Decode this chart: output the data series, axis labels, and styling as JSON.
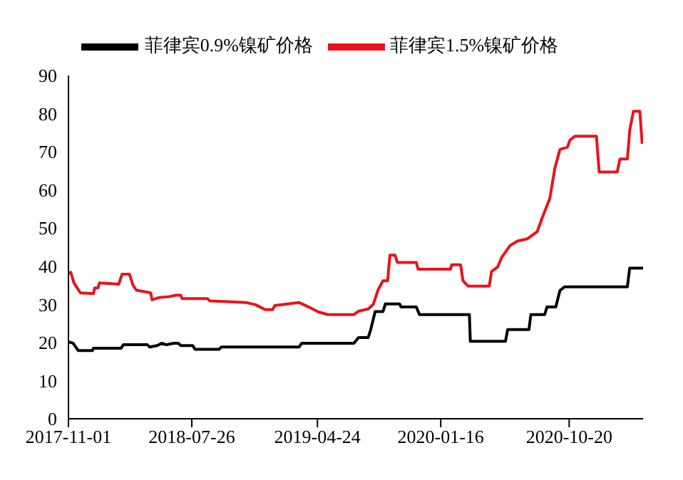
{
  "chart_data": {
    "type": "line",
    "legend": "top",
    "xlim": [
      "2017-11-01",
      "2021-03-29"
    ],
    "xticks": [
      "2017-11-01",
      "2018-07-26",
      "2019-04-24",
      "2020-01-16",
      "2020-10-20"
    ],
    "ylim": [
      0,
      90
    ],
    "yticks": [
      0,
      10,
      20,
      30,
      40,
      50,
      60,
      70,
      80,
      90
    ],
    "series": [
      {
        "name": "菲律宾1.5%镍矿价格",
        "color": "#e8141b",
        "x": [
          "2017-11-01",
          "2017-11-06",
          "2017-11-13",
          "2017-11-27",
          "2017-12-25",
          "2017-12-28",
          "2018-01-04",
          "2018-01-07",
          "2018-02-18",
          "2018-02-25",
          "2018-03-13",
          "2018-03-21",
          "2018-03-28",
          "2018-04-16",
          "2018-04-28",
          "2018-05-01",
          "2018-05-17",
          "2018-06-06",
          "2018-06-22",
          "2018-07-02",
          "2018-07-05",
          "2018-08-29",
          "2018-09-03",
          "2018-11-20",
          "2018-12-11",
          "2019-01-01",
          "2019-01-17",
          "2019-01-22",
          "2019-03-15",
          "2019-04-05",
          "2019-04-26",
          "2019-05-17",
          "2019-07-12",
          "2019-07-22",
          "2019-08-12",
          "2019-08-23",
          "2019-09-02",
          "2019-09-13",
          "2019-09-23",
          "2019-09-28",
          "2019-10-09",
          "2019-10-14",
          "2019-11-24",
          "2019-11-28",
          "2020-02-06",
          "2020-02-09",
          "2020-02-28",
          "2020-03-04",
          "2020-03-15",
          "2020-04-30",
          "2020-05-05",
          "2020-05-18",
          "2020-05-27",
          "2020-06-14",
          "2020-06-30",
          "2020-07-22",
          "2020-08-12",
          "2020-08-23",
          "2020-09-08",
          "2020-09-19",
          "2020-09-30",
          "2020-10-16",
          "2020-10-22",
          "2020-11-02",
          "2020-12-18",
          "2020-12-24",
          "2021-02-01",
          "2021-02-07",
          "2021-02-23",
          "2021-02-28",
          "2021-03-08",
          "2021-03-22",
          "2021-03-27"
        ],
        "values": [
          38.1,
          38.4,
          35.6,
          33,
          32.8,
          34.3,
          34.3,
          35.6,
          35.3,
          37.9,
          37.9,
          35,
          33.7,
          33.3,
          33,
          31.2,
          31.8,
          32,
          32.4,
          32.4,
          31.5,
          31.5,
          30.9,
          30.5,
          29.9,
          28.6,
          28.6,
          29.7,
          30.5,
          29.3,
          28,
          27.3,
          27.3,
          28.2,
          28.8,
          30,
          33.7,
          36.2,
          36.2,
          42.9,
          42.9,
          41,
          41,
          39.2,
          39.2,
          40.4,
          40.4,
          36.2,
          34.8,
          34.8,
          38.6,
          39.8,
          42.3,
          45.4,
          46.6,
          47.2,
          49.1,
          52.8,
          57.7,
          65.7,
          70.6,
          71.2,
          73.1,
          74.1,
          74.1,
          64.7,
          64.7,
          68.1,
          68.1,
          75.5,
          80.6,
          80.6,
          72.1
        ]
      },
      {
        "name": "菲律宾0.9%镍矿价格",
        "color": "#000000",
        "x": [
          "2017-11-01",
          "2017-11-11",
          "2017-11-22",
          "2017-12-23",
          "2017-12-25",
          "2018-02-23",
          "2018-02-28",
          "2018-04-21",
          "2018-04-26",
          "2018-05-12",
          "2018-05-22",
          "2018-06-01",
          "2018-06-16",
          "2018-06-27",
          "2018-07-02",
          "2018-07-28",
          "2018-08-02",
          "2018-09-23",
          "2018-09-28",
          "2019-03-15",
          "2019-03-21",
          "2019-07-12",
          "2019-07-22",
          "2019-08-12",
          "2019-08-17",
          "2019-08-27",
          "2019-09-13",
          "2019-09-18",
          "2019-10-19",
          "2019-10-22",
          "2019-11-24",
          "2019-12-01",
          "2020-03-18",
          "2020-03-20",
          "2020-06-04",
          "2020-06-09",
          "2020-07-25",
          "2020-07-29",
          "2020-08-28",
          "2020-09-02",
          "2020-09-21",
          "2020-09-30",
          "2020-10-10",
          "2021-02-23",
          "2021-02-28",
          "2021-03-29"
        ],
        "values": [
          20.2,
          19.8,
          17.9,
          17.9,
          18.5,
          18.5,
          19.4,
          19.4,
          18.8,
          19.2,
          19.8,
          19.4,
          19.8,
          19.8,
          19.2,
          19.2,
          18.2,
          18.2,
          18.8,
          18.8,
          19.8,
          19.8,
          21.3,
          21.3,
          23.2,
          28.1,
          28.1,
          30.1,
          30.1,
          29.3,
          29.3,
          27.3,
          27.3,
          20.3,
          20.3,
          23.4,
          23.4,
          27.3,
          27.3,
          29.3,
          29.3,
          33.6,
          34.6,
          34.6,
          39.5,
          39.5
        ]
      }
    ]
  }
}
